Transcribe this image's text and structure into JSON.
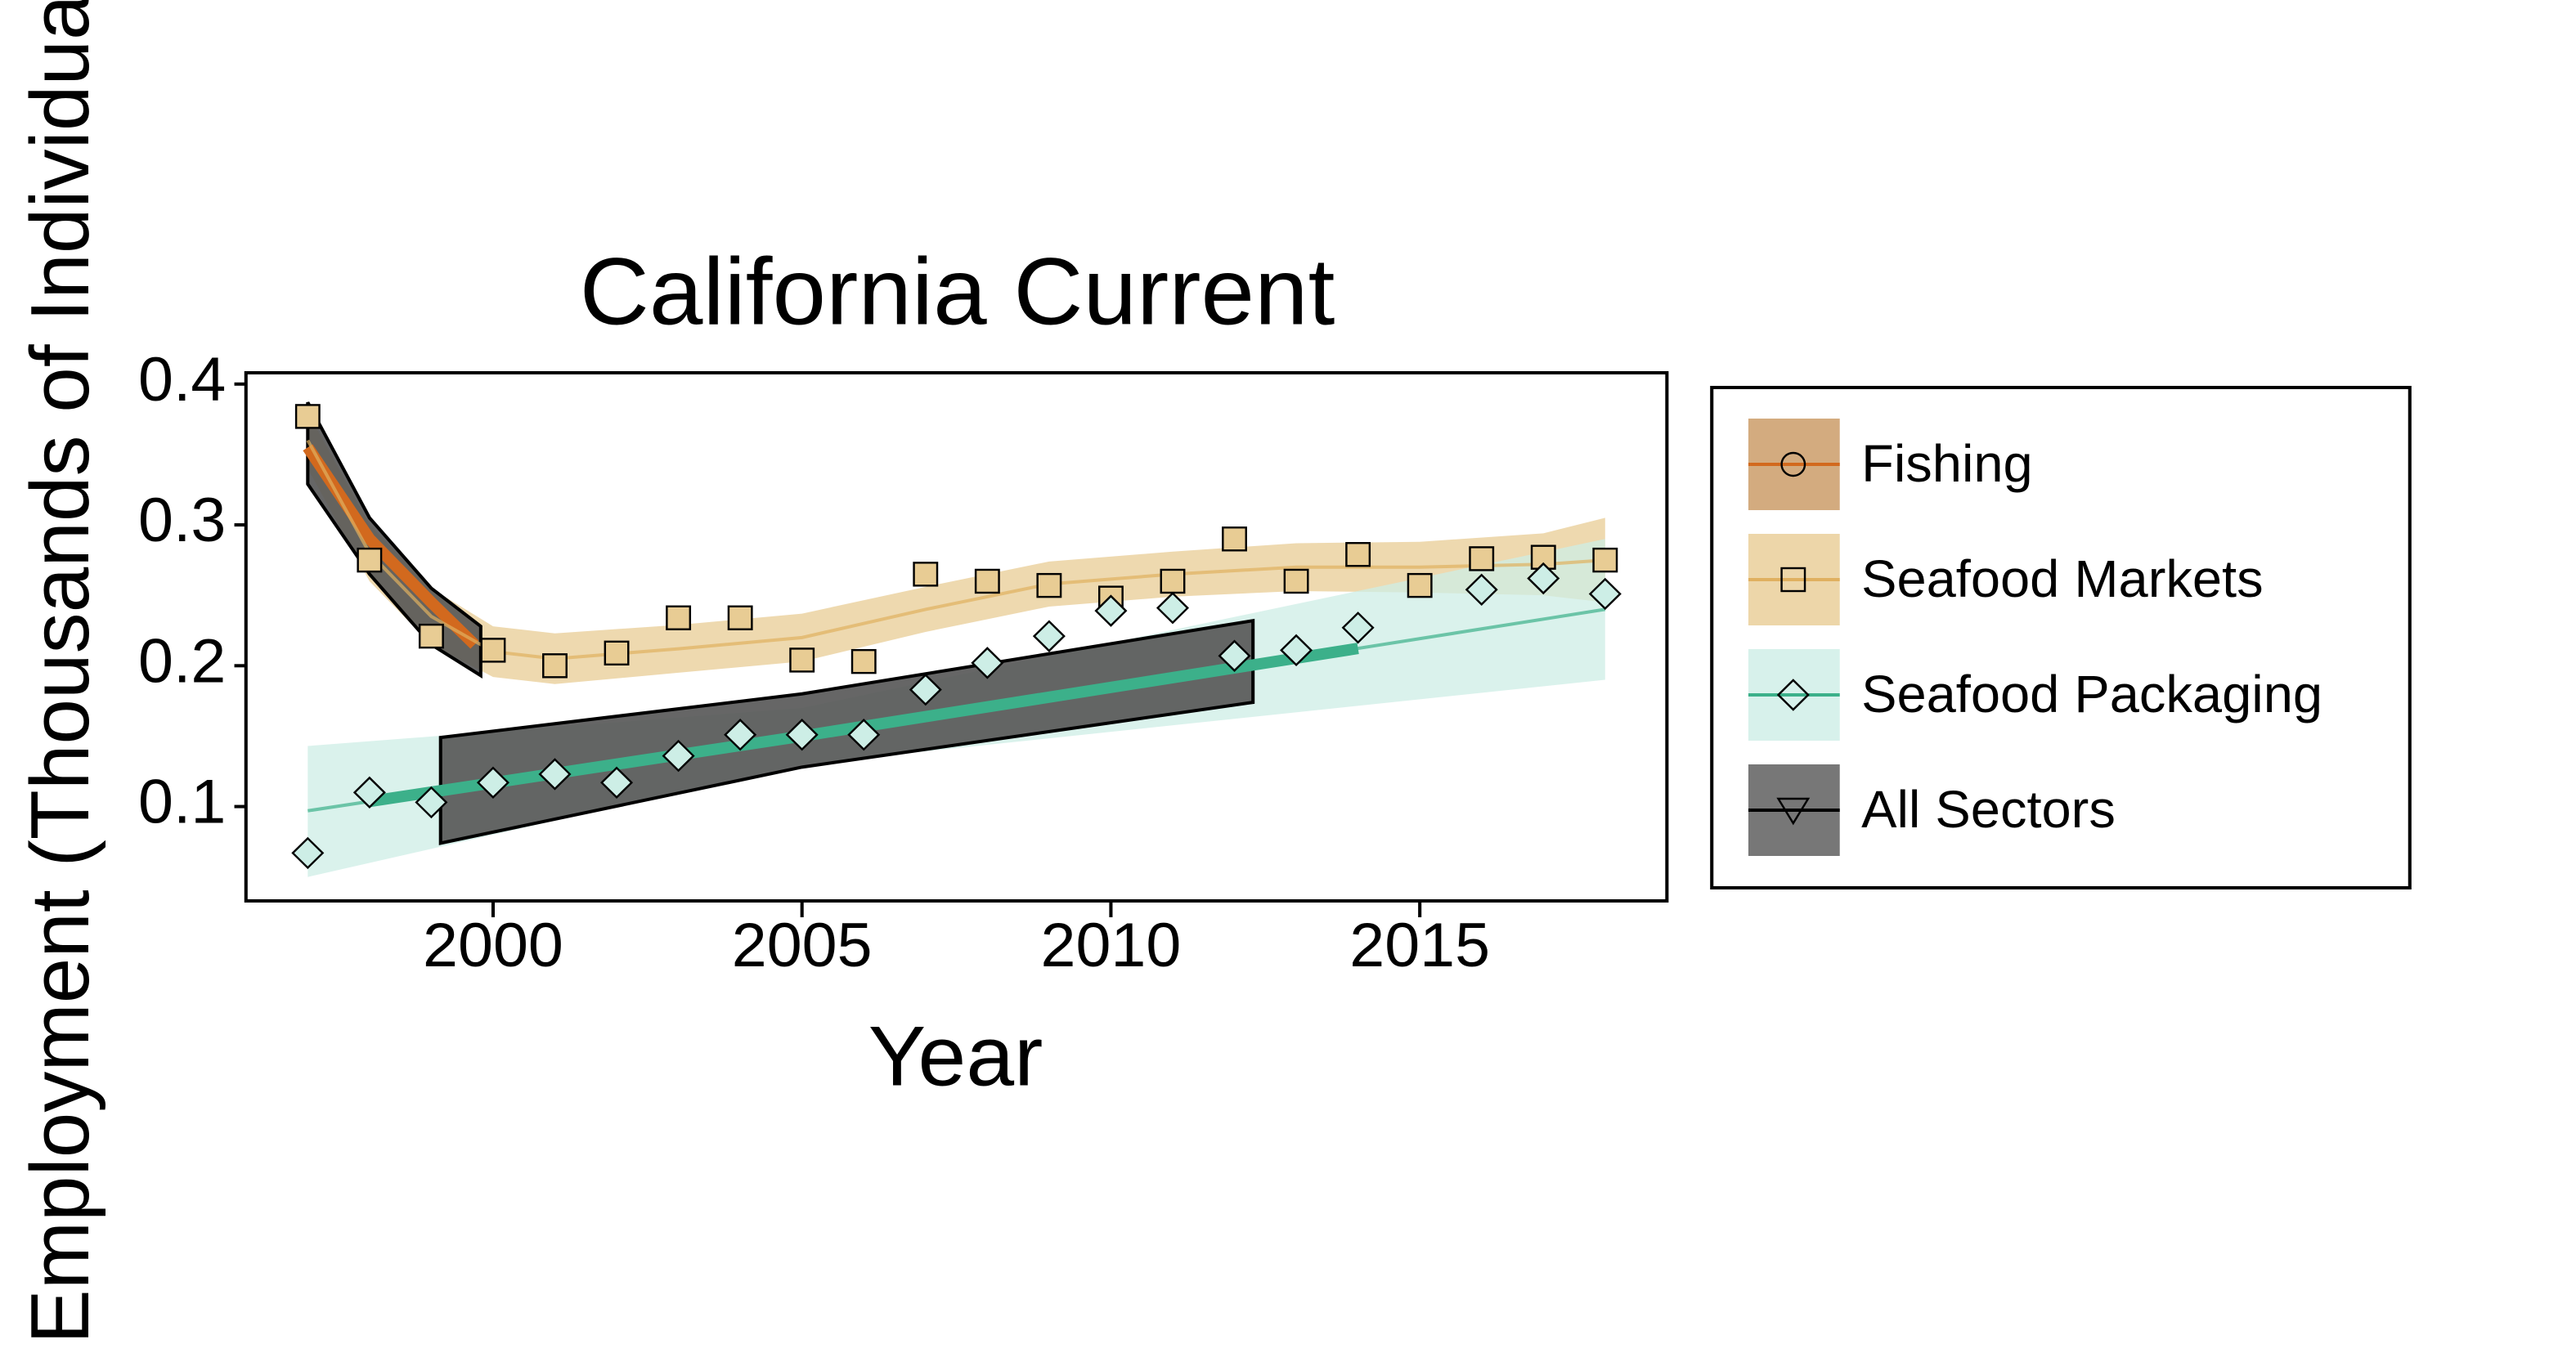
{
  "chart_data": {
    "type": "scatter-trend",
    "title": "California Current",
    "xlabel": "Year",
    "ylabel": "Employment (Thousands of Individuals)",
    "xlim": [
      1996,
      2019
    ],
    "xticks": [
      2000,
      2005,
      2010,
      2015
    ],
    "ylim": [
      0.033,
      0.408
    ],
    "yticks": [
      0.1,
      0.2,
      0.3,
      0.4
    ],
    "x": [
      1997,
      1998,
      1999,
      2000,
      2001,
      2002,
      2003,
      2004,
      2005,
      2006,
      2007,
      2008,
      2009,
      2010,
      2011,
      2012,
      2013,
      2014,
      2015,
      2016,
      2017,
      2018
    ],
    "series": [
      {
        "name": "Fishing",
        "color": "#d2691e",
        "band_color": "#c8965f",
        "marker": "circle",
        "fit_x": [
          1997,
          1998,
          1999,
          1999.7
        ],
        "fit": [
          0.355,
          0.29,
          0.245,
          0.215
        ],
        "highlight_x": [
          1997,
          1999.7
        ]
      },
      {
        "name": "Seafood Markets",
        "color": "#e0b060",
        "band_color": "#e8cc94",
        "marker": "square",
        "values": [
          0.377,
          0.275,
          0.221,
          0.211,
          0.2,
          0.209,
          0.234,
          0.234,
          0.204,
          0.203,
          0.265,
          0.26,
          0.257,
          0.248,
          0.26,
          0.29,
          0.26,
          0.279,
          0.257,
          0.276,
          0.277,
          0.275
        ],
        "fit_x": [
          1997,
          1998,
          1999,
          2000,
          2001,
          2003,
          2005,
          2007,
          2009,
          2011,
          2013,
          2015,
          2017,
          2018
        ],
        "fit": [
          0.36,
          0.28,
          0.235,
          0.21,
          0.205,
          0.212,
          0.22,
          0.24,
          0.258,
          0.265,
          0.27,
          0.27,
          0.272,
          0.275
        ],
        "fit_low": [
          0.34,
          0.26,
          0.215,
          0.192,
          0.187,
          0.195,
          0.203,
          0.224,
          0.242,
          0.249,
          0.253,
          0.252,
          0.25,
          0.245
        ],
        "fit_high": [
          0.38,
          0.3,
          0.255,
          0.228,
          0.223,
          0.229,
          0.237,
          0.256,
          0.274,
          0.281,
          0.287,
          0.288,
          0.294,
          0.305
        ]
      },
      {
        "name": "Seafood Packaging",
        "color": "#3cb08a",
        "band_color": "#cdeee6",
        "marker": "diamond",
        "values": [
          0.067,
          0.11,
          0.103,
          0.117,
          0.123,
          0.117,
          0.136,
          0.151,
          0.151,
          0.151,
          0.183,
          0.202,
          0.221,
          0.239,
          0.241,
          0.207,
          0.211,
          0.227,
          null,
          0.254,
          0.262,
          0.251
        ],
        "fit_x": [
          1997,
          2005,
          2018
        ],
        "fit": [
          0.097,
          0.15,
          0.24
        ],
        "fit_low": [
          0.05,
          0.13,
          0.19
        ],
        "fit_high": [
          0.143,
          0.17,
          0.29
        ],
        "highlight_x": [
          1998,
          2014
        ]
      },
      {
        "name": "All Sectors",
        "color": "#000000",
        "band_color": "#555555",
        "marker": "triangle",
        "bands": [
          {
            "x": [
              1997,
              1998,
              1999,
              1999.8
            ],
            "low": [
              0.329,
              0.265,
              0.215,
              0.193
            ],
            "high": [
              0.387,
              0.305,
              0.255,
              0.228
            ]
          },
          {
            "x": [
              1999.15,
              2005,
              2012.3
            ],
            "low": [
              0.074,
              0.128,
              0.174
            ],
            "high": [
              0.149,
              0.18,
              0.232
            ]
          }
        ]
      }
    ]
  }
}
